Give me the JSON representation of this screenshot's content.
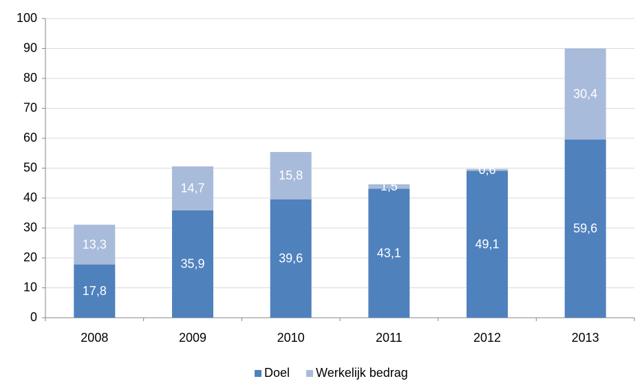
{
  "chart_data": {
    "type": "stacked_bar",
    "categories": [
      "2008",
      "2009",
      "2010",
      "2011",
      "2012",
      "2013"
    ],
    "series": [
      {
        "name": "Doel",
        "color": "#4f81bd",
        "values": [
          17.8,
          35.9,
          39.6,
          43.1,
          49.1,
          59.6
        ],
        "value_labels": [
          "17,8",
          "35,9",
          "39,6",
          "43,1",
          "49,1",
          "59,6"
        ]
      },
      {
        "name": "Werkelijk bedrag",
        "color": "#a9bbdb",
        "values": [
          13.3,
          14.7,
          15.8,
          1.5,
          0.6,
          30.4
        ],
        "value_labels": [
          "13,3",
          "14,7",
          "15,8",
          "1,5",
          "0,6",
          "30,4"
        ]
      }
    ],
    "ylim": [
      0,
      100
    ],
    "yticks": [
      0,
      10,
      20,
      30,
      40,
      50,
      60,
      70,
      80,
      90,
      100
    ],
    "grid": true,
    "legend": "bottom"
  }
}
